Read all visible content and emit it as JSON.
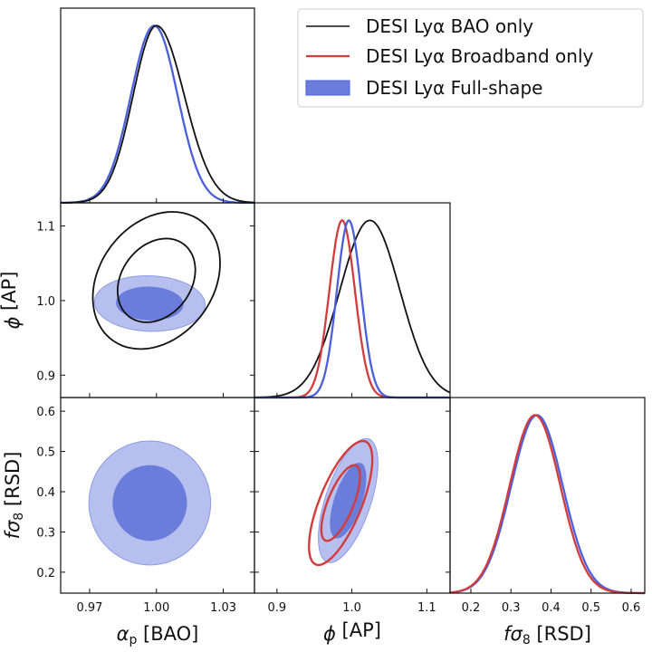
{
  "chart_data": {
    "type": "corner",
    "contour_levels": [
      0.68,
      0.95
    ],
    "parameters": [
      {
        "id": "alpha_p",
        "symbol": "α",
        "sub": "p",
        "unit": " [BAO]",
        "range": [
          0.957,
          1.044
        ],
        "ticks": [
          0.97,
          1.0,
          1.03
        ],
        "tick_labels": [
          "0.97",
          "1.00",
          "1.03"
        ]
      },
      {
        "id": "phi",
        "symbol": "ϕ",
        "sub": "",
        "unit": " [AP]",
        "range": [
          0.87,
          1.131
        ],
        "ticks": [
          0.9,
          1.0,
          1.1
        ],
        "tick_labels": [
          "0.9",
          "1.0",
          "1.1"
        ]
      },
      {
        "id": "fsigma8",
        "symbol": "fσ",
        "sub": "8",
        "unit": " [RSD]",
        "range": [
          0.148,
          0.634
        ],
        "ticks": [
          0.2,
          0.3,
          0.4,
          0.5,
          0.6
        ],
        "tick_labels": [
          "0.2",
          "0.3",
          "0.4",
          "0.5",
          "0.6"
        ]
      }
    ],
    "series": [
      {
        "name": "DESI Lyα BAO only",
        "color": "#111111",
        "style": "line",
        "marginals": {
          "alpha_p": {
            "mean": 1.0,
            "sigma_left": 0.0105,
            "sigma_right": 0.0125
          },
          "phi": {
            "mean": 1.024,
            "sigma_left": 0.04,
            "sigma_right": 0.04
          }
        },
        "contours": [
          {
            "x": "alpha_p",
            "y": "phi",
            "mean": [
              1.0,
              1.027
            ],
            "sigma": [
              0.0115,
              0.037
            ],
            "rho": 0.25
          }
        ]
      },
      {
        "name": "DESI Lyα Broadband only",
        "color": "#d23c3c",
        "style": "line",
        "marginals": {
          "phi": {
            "mean": 0.987,
            "sigma_left": 0.017,
            "sigma_right": 0.017
          },
          "fsigma8": {
            "mean": 0.36,
            "sigma_left": 0.063,
            "sigma_right": 0.063
          }
        },
        "contours": [
          {
            "x": "phi",
            "y": "fsigma8",
            "mean": [
              0.985,
              0.372
            ],
            "sigma": [
              0.017,
              0.062
            ],
            "rho": 0.7
          }
        ]
      },
      {
        "name": "DESI Lyα Full-shape",
        "color": "#4a5fdc",
        "fill_inner": "#6b7ddb",
        "fill_outer": "#b6bfee",
        "style": "filled",
        "marginals": {
          "alpha_p": {
            "mean": 0.999,
            "sigma_left": 0.0105,
            "sigma_right": 0.0105
          },
          "phi": {
            "mean": 0.996,
            "sigma_left": 0.016,
            "sigma_right": 0.016
          },
          "fsigma8": {
            "mean": 0.365,
            "sigma_left": 0.064,
            "sigma_right": 0.064
          }
        },
        "contours": [
          {
            "x": "alpha_p",
            "y": "phi",
            "mean": [
              0.997,
              0.996
            ],
            "sigma": [
              0.01,
              0.015
            ],
            "rho": -0.05
          },
          {
            "x": "alpha_p",
            "y": "fsigma8",
            "mean": [
              0.997,
              0.372
            ],
            "sigma": [
              0.011,
              0.062
            ],
            "rho": 0.0
          },
          {
            "x": "phi",
            "y": "fsigma8",
            "mean": [
              0.995,
              0.378
            ],
            "sigma": [
              0.016,
              0.062
            ],
            "rho": 0.6
          }
        ]
      }
    ],
    "legend": {
      "placement": "top-right",
      "entries": [
        "DESI Lyα BAO only",
        "DESI Lyα Broadband only",
        "DESI Lyα Full-shape"
      ]
    }
  }
}
